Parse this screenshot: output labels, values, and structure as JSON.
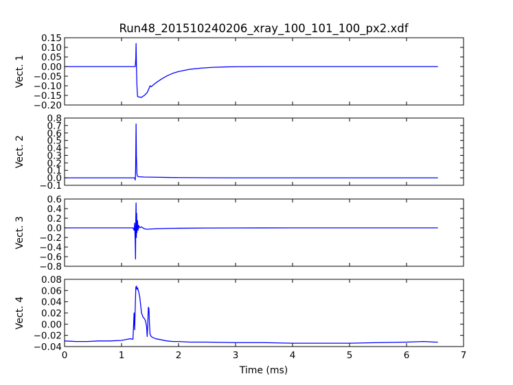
{
  "figure": {
    "title": "Run48_201510240206_xray_100_101_100_px2.xdf",
    "xlabel": "Time (ms)"
  },
  "chart_data": [
    {
      "type": "line",
      "ylabel": "Vect. 1",
      "xlim": [
        0,
        7
      ],
      "ylim": [
        -0.2,
        0.15
      ],
      "xticks": [
        0,
        1,
        2,
        3,
        4,
        5,
        6,
        7
      ],
      "xtick_labels": [
        "0",
        "1",
        "2",
        "3",
        "4",
        "5",
        "6",
        "7"
      ],
      "yticks": [
        -0.2,
        -0.15,
        -0.1,
        -0.05,
        0.0,
        0.05,
        0.1,
        0.15
      ],
      "ytick_labels": [
        "−0.20",
        "−0.15",
        "−0.10",
        "−0.05",
        "0.00",
        "0.05",
        "0.10",
        "0.15"
      ],
      "show_xtick_labels": false,
      "grid": false,
      "color": "#0000ff",
      "x": [
        0,
        1.0,
        1.2,
        1.24,
        1.25,
        1.255,
        1.26,
        1.27,
        1.28,
        1.3,
        1.35,
        1.4,
        1.45,
        1.48,
        1.5,
        1.52,
        1.6,
        1.7,
        1.8,
        1.9,
        2.0,
        2.2,
        2.4,
        2.6,
        2.8,
        3.0,
        3.5,
        4.0,
        5.0,
        6.0,
        6.55
      ],
      "y": [
        0.0,
        0.0,
        0.0,
        0.0,
        0.04,
        0.12,
        0.02,
        -0.1,
        -0.155,
        -0.158,
        -0.16,
        -0.15,
        -0.135,
        -0.115,
        -0.1,
        -0.105,
        -0.085,
        -0.065,
        -0.048,
        -0.035,
        -0.026,
        -0.014,
        -0.008,
        -0.004,
        -0.002,
        -0.001,
        0.0,
        0.0,
        0.0,
        0.0,
        0.0
      ]
    },
    {
      "type": "line",
      "ylabel": "Vect. 2",
      "xlim": [
        0,
        7
      ],
      "ylim": [
        -0.1,
        0.8
      ],
      "xticks": [
        0,
        1,
        2,
        3,
        4,
        5,
        6,
        7
      ],
      "xtick_labels": [
        "0",
        "1",
        "2",
        "3",
        "4",
        "5",
        "6",
        "7"
      ],
      "yticks": [
        -0.1,
        0.0,
        0.1,
        0.2,
        0.3,
        0.4,
        0.5,
        0.6,
        0.7,
        0.8
      ],
      "ytick_labels": [
        "−0.1",
        "0.0",
        "0.1",
        "0.2",
        "0.3",
        "0.4",
        "0.5",
        "0.6",
        "0.7",
        "0.8"
      ],
      "show_xtick_labels": false,
      "grid": false,
      "color": "#0000ff",
      "x": [
        0,
        1.0,
        1.2,
        1.23,
        1.24,
        1.245,
        1.25,
        1.255,
        1.26,
        1.27,
        1.28,
        1.3,
        1.4,
        1.6,
        1.8,
        2.0,
        2.5,
        3.0,
        4.0,
        5.0,
        6.0,
        6.55
      ],
      "y": [
        0.0,
        0.0,
        0.0,
        0.0,
        -0.03,
        0.05,
        0.3,
        0.72,
        0.3,
        0.05,
        0.02,
        0.015,
        0.01,
        0.008,
        0.005,
        0.003,
        0.001,
        0.0,
        0.0,
        0.0,
        0.0,
        0.0
      ]
    },
    {
      "type": "line",
      "ylabel": "Vect. 3",
      "xlim": [
        0,
        7
      ],
      "ylim": [
        -0.8,
        0.6
      ],
      "xticks": [
        0,
        1,
        2,
        3,
        4,
        5,
        6,
        7
      ],
      "xtick_labels": [
        "0",
        "1",
        "2",
        "3",
        "4",
        "5",
        "6",
        "7"
      ],
      "yticks": [
        -0.8,
        -0.6,
        -0.4,
        -0.2,
        0.0,
        0.2,
        0.4,
        0.6
      ],
      "ytick_labels": [
        "−0.8",
        "−0.6",
        "−0.4",
        "−0.2",
        "0.0",
        "0.2",
        "0.4",
        "0.6"
      ],
      "show_xtick_labels": false,
      "grid": false,
      "color": "#0000ff",
      "x": [
        0,
        1.0,
        1.2,
        1.22,
        1.23,
        1.24,
        1.245,
        1.25,
        1.255,
        1.26,
        1.265,
        1.27,
        1.28,
        1.29,
        1.3,
        1.32,
        1.35,
        1.4,
        1.45,
        1.5,
        1.6,
        1.8,
        2.0,
        2.5,
        3.0,
        4.0,
        5.0,
        6.0,
        6.55
      ],
      "y": [
        0.0,
        0.0,
        0.0,
        -0.05,
        0.1,
        -0.3,
        -0.65,
        0.2,
        0.52,
        -0.2,
        0.3,
        -0.1,
        0.15,
        -0.05,
        0.05,
        0.0,
        0.02,
        -0.02,
        -0.03,
        -0.025,
        -0.02,
        -0.012,
        -0.008,
        -0.004,
        -0.002,
        0.0,
        0.0,
        0.0,
        0.0
      ]
    },
    {
      "type": "line",
      "ylabel": "Vect. 4",
      "xlim": [
        0,
        7
      ],
      "ylim": [
        -0.04,
        0.08
      ],
      "xticks": [
        0,
        1,
        2,
        3,
        4,
        5,
        6,
        7
      ],
      "xtick_labels": [
        "0",
        "1",
        "2",
        "3",
        "4",
        "5",
        "6",
        "7"
      ],
      "yticks": [
        -0.04,
        -0.02,
        0.0,
        0.02,
        0.04,
        0.06,
        0.08
      ],
      "ytick_labels": [
        "−0.04",
        "−0.02",
        "0.00",
        "0.02",
        "0.04",
        "0.06",
        "0.08"
      ],
      "show_xtick_labels": true,
      "grid": false,
      "color": "#0000ff",
      "x": [
        0,
        0.2,
        0.4,
        0.6,
        0.8,
        1.0,
        1.1,
        1.15,
        1.2,
        1.22,
        1.23,
        1.24,
        1.25,
        1.26,
        1.27,
        1.28,
        1.3,
        1.32,
        1.35,
        1.38,
        1.4,
        1.42,
        1.44,
        1.45,
        1.46,
        1.47,
        1.48,
        1.49,
        1.5,
        1.52,
        1.55,
        1.6,
        1.7,
        1.8,
        1.9,
        2.0,
        2.2,
        2.5,
        3.0,
        3.5,
        4.0,
        4.5,
        5.0,
        5.5,
        6.0,
        6.3,
        6.5,
        6.55
      ],
      "y": [
        -0.03,
        -0.031,
        -0.031,
        -0.03,
        -0.03,
        -0.029,
        -0.027,
        -0.026,
        -0.027,
        0.02,
        -0.01,
        0.03,
        0.065,
        0.068,
        0.062,
        0.065,
        0.058,
        0.048,
        0.02,
        0.012,
        0.01,
        0.006,
        -0.005,
        -0.022,
        0.0,
        0.03,
        0.028,
        0.0,
        -0.018,
        -0.022,
        -0.024,
        -0.026,
        -0.028,
        -0.03,
        -0.031,
        -0.031,
        -0.032,
        -0.032,
        -0.033,
        -0.033,
        -0.034,
        -0.034,
        -0.034,
        -0.033,
        -0.032,
        -0.031,
        -0.032,
        -0.032
      ]
    }
  ]
}
